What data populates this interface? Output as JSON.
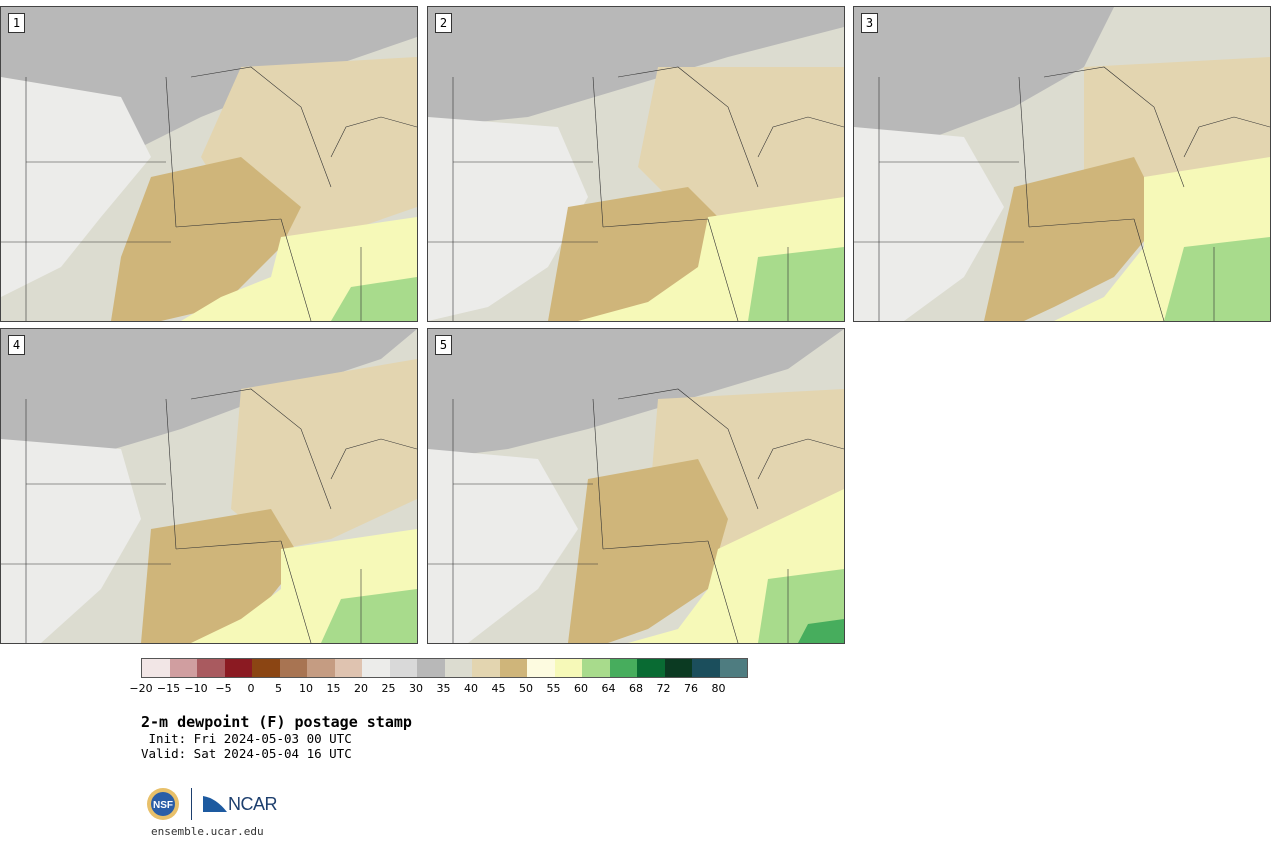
{
  "panels": [
    {
      "label": "1"
    },
    {
      "label": "2"
    },
    {
      "label": "3"
    },
    {
      "label": "4"
    },
    {
      "label": "5"
    }
  ],
  "legend": {
    "colors": [
      "#f2e6e6",
      "#d09ea0",
      "#a95a5f",
      "#8b1a22",
      "#8b4513",
      "#a87452",
      "#c59c82",
      "#dfc3b0",
      "#ececea",
      "#d9d9d9",
      "#b8b8b8",
      "#dcdcd0",
      "#e3d5b0",
      "#cfb57a",
      "#fdfbe0",
      "#f6f9b8",
      "#a8db8c",
      "#47ad5d",
      "#096b33",
      "#0b3a22",
      "#1b4e5c",
      "#4e7c80"
    ],
    "tick_labels": [
      "−20",
      "−15",
      "−10",
      "−5",
      "0",
      "5",
      "10",
      "15",
      "20",
      "25",
      "30",
      "35",
      "40",
      "45",
      "50",
      "55",
      "60",
      "64",
      "68",
      "72",
      "76",
      "80"
    ]
  },
  "title": "2-m dewpoint (F) postage stamp",
  "init_line": " Init: Fri 2024-05-03 00 UTC",
  "valid_line": "Valid: Sat 2024-05-04 16 UTC",
  "logo_text": "NCAR",
  "site": "ensemble.ucar.edu"
}
